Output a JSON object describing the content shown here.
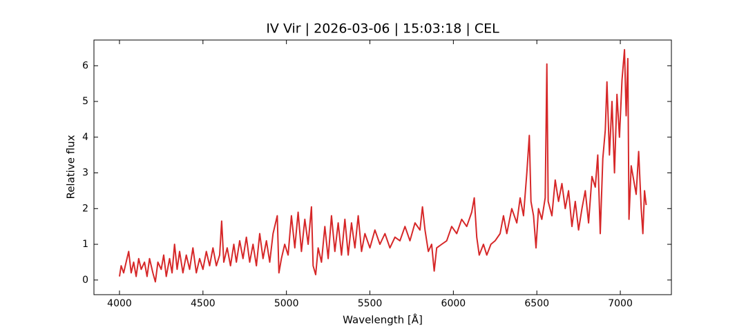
{
  "chart_data": {
    "type": "line",
    "title": "IV Vir | 2026-03-06 | 15:03:18 | CEL",
    "x_label": "Wavelength [Å]",
    "y_label": "Relative flux",
    "xlim": [
      3847,
      7306
    ],
    "ylim": [
      -0.41,
      6.72
    ],
    "xticks": [
      4000,
      4500,
      5000,
      5500,
      6000,
      6500,
      7000
    ],
    "yticks": [
      0,
      1,
      2,
      3,
      4,
      5,
      6
    ],
    "series": [
      {
        "name": "IV Vir",
        "color": "#d62728",
        "x": [
          4000,
          4010,
          4025,
          4040,
          4055,
          4070,
          4085,
          4100,
          4115,
          4130,
          4150,
          4165,
          4180,
          4200,
          4215,
          4230,
          4250,
          4265,
          4280,
          4300,
          4315,
          4330,
          4345,
          4360,
          4380,
          4400,
          4420,
          4440,
          4460,
          4480,
          4500,
          4520,
          4540,
          4560,
          4580,
          4600,
          4612,
          4625,
          4645,
          4665,
          4685,
          4700,
          4720,
          4740,
          4760,
          4780,
          4800,
          4820,
          4840,
          4860,
          4880,
          4900,
          4920,
          4945,
          4955,
          4970,
          4990,
          5010,
          5030,
          5050,
          5070,
          5090,
          5110,
          5130,
          5150,
          5160,
          5175,
          5190,
          5210,
          5230,
          5250,
          5270,
          5290,
          5310,
          5330,
          5350,
          5370,
          5390,
          5410,
          5430,
          5450,
          5470,
          5500,
          5530,
          5560,
          5590,
          5620,
          5650,
          5680,
          5710,
          5740,
          5770,
          5800,
          5815,
          5830,
          5850,
          5870,
          5885,
          5900,
          5930,
          5960,
          5990,
          6020,
          6050,
          6080,
          6110,
          6125,
          6140,
          6155,
          6180,
          6200,
          6225,
          6250,
          6280,
          6300,
          6320,
          6350,
          6380,
          6400,
          6420,
          6440,
          6455,
          6465,
          6480,
          6495,
          6510,
          6530,
          6550,
          6560,
          6568,
          6590,
          6610,
          6630,
          6650,
          6670,
          6690,
          6710,
          6730,
          6750,
          6770,
          6790,
          6810,
          6830,
          6850,
          6865,
          6880,
          6895,
          6910,
          6920,
          6935,
          6950,
          6965,
          6980,
          6995,
          7010,
          7025,
          7035,
          7045,
          7052,
          7065,
          7080,
          7095,
          7110,
          7125,
          7135,
          7145,
          7155
        ],
        "values": [
          0.1,
          0.4,
          0.2,
          0.5,
          0.8,
          0.2,
          0.5,
          0.1,
          0.6,
          0.3,
          0.5,
          0.1,
          0.6,
          0.2,
          -0.05,
          0.5,
          0.3,
          0.7,
          0.1,
          0.6,
          0.2,
          1.0,
          0.3,
          0.8,
          0.2,
          0.7,
          0.3,
          0.9,
          0.2,
          0.6,
          0.3,
          0.8,
          0.4,
          0.9,
          0.4,
          0.7,
          1.65,
          0.5,
          0.9,
          0.4,
          1.0,
          0.5,
          1.1,
          0.6,
          1.2,
          0.5,
          1.0,
          0.4,
          1.3,
          0.6,
          1.1,
          0.5,
          1.3,
          1.8,
          0.2,
          0.6,
          1.0,
          0.7,
          1.8,
          0.9,
          1.9,
          0.8,
          1.7,
          1.0,
          2.05,
          0.4,
          0.15,
          0.9,
          0.5,
          1.5,
          0.6,
          1.8,
          0.8,
          1.6,
          0.7,
          1.7,
          0.7,
          1.6,
          0.9,
          1.8,
          0.8,
          1.3,
          0.9,
          1.4,
          1.0,
          1.3,
          0.9,
          1.2,
          1.1,
          1.5,
          1.1,
          1.6,
          1.4,
          2.05,
          1.4,
          0.8,
          1.0,
          0.25,
          0.9,
          1.0,
          1.1,
          1.5,
          1.3,
          1.7,
          1.5,
          1.9,
          2.3,
          1.2,
          0.7,
          1.0,
          0.7,
          1.0,
          1.1,
          1.3,
          1.8,
          1.3,
          2.0,
          1.6,
          2.3,
          1.8,
          3.0,
          4.05,
          2.2,
          1.8,
          0.9,
          2.0,
          1.7,
          2.3,
          6.05,
          2.2,
          1.8,
          2.8,
          2.2,
          2.7,
          2.0,
          2.5,
          1.5,
          2.2,
          1.4,
          2.0,
          2.5,
          1.6,
          2.9,
          2.6,
          3.5,
          1.3,
          3.4,
          4.2,
          5.55,
          3.5,
          5.0,
          3.0,
          5.2,
          4.0,
          5.6,
          6.45,
          4.6,
          6.2,
          1.7,
          3.2,
          2.8,
          2.4,
          3.6,
          2.0,
          1.3,
          2.5,
          2.1
        ]
      }
    ]
  }
}
